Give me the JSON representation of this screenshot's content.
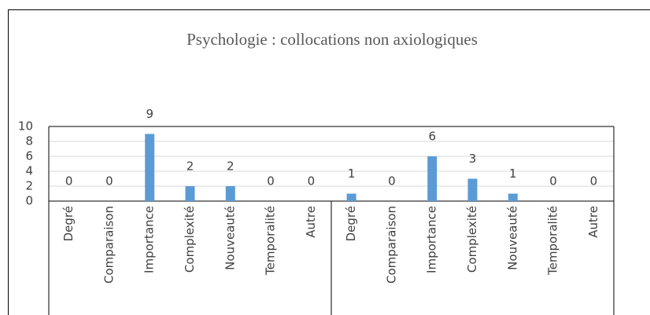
{
  "chart_data": {
    "type": "bar",
    "title": "Psychologie : collocations non axiologiques",
    "categories": [
      "Degré",
      "Comparaison",
      "Importance",
      "Complexité",
      "Nouveauté",
      "Temporalité",
      "Autre",
      "Degré",
      "Comparaison",
      "Importance",
      "Complexité",
      "Nouveauté",
      "Temporalité",
      "Autre"
    ],
    "values": [
      0,
      0,
      9,
      2,
      2,
      0,
      0,
      1,
      0,
      6,
      3,
      1,
      0,
      0
    ],
    "color": "#5b9bd5",
    "ylim": [
      0,
      10
    ],
    "yticks": [
      0,
      2,
      4,
      6,
      8,
      10
    ],
    "grid": true
  }
}
